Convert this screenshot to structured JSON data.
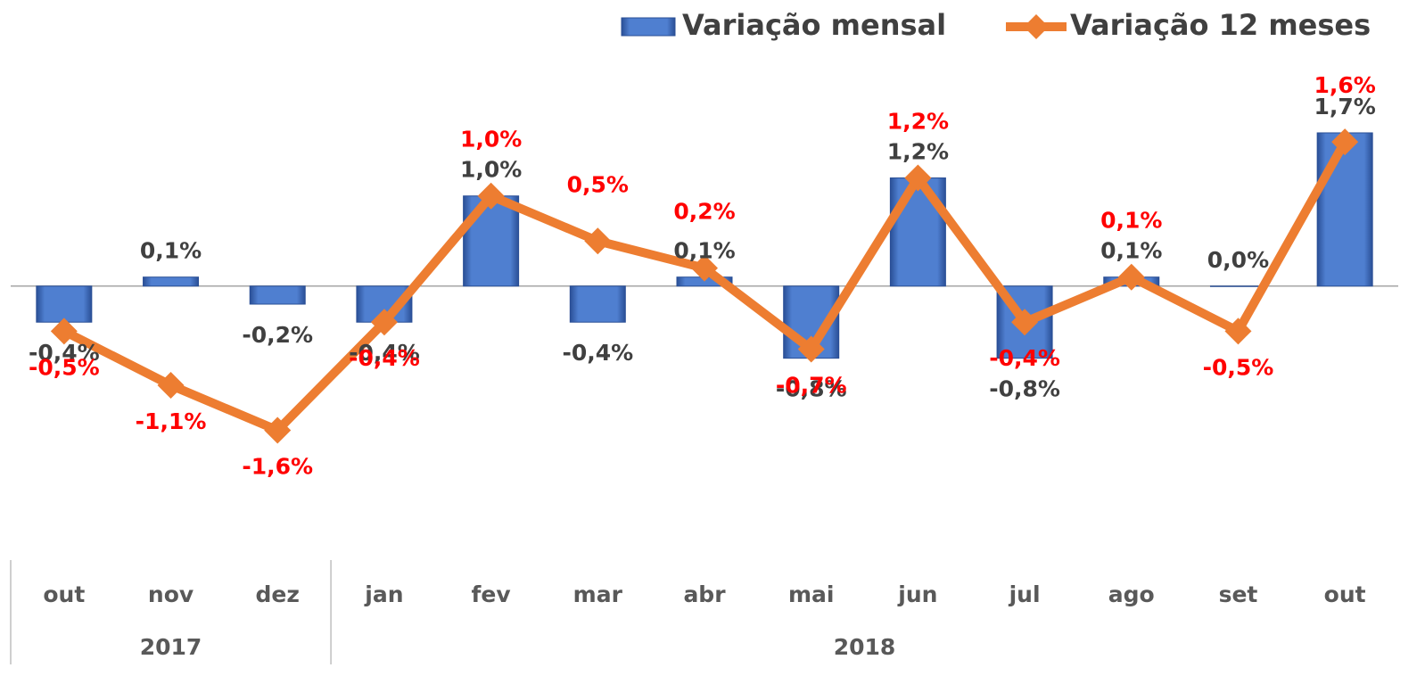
{
  "chart_data": {
    "type": "bar-line",
    "category_groups": [
      {
        "label": "2017",
        "categories": [
          "out",
          "nov",
          "dez"
        ]
      },
      {
        "label": "2018",
        "categories": [
          "jan",
          "fev",
          "mar",
          "abr",
          "mai",
          "jun",
          "jul",
          "ago",
          "set",
          "out"
        ]
      }
    ],
    "series": [
      {
        "name": "Variação mensal",
        "type": "bar",
        "color": "#4472c4",
        "values": [
          -0.4,
          0.1,
          -0.2,
          -0.4,
          1.0,
          -0.4,
          0.1,
          -0.8,
          1.2,
          -0.8,
          0.1,
          0.0,
          1.7
        ],
        "value_labels": [
          "-0,4%",
          "0,1%",
          "-0,2%",
          "-0,4%",
          "1,0%",
          "-0,4%",
          "0,1%",
          "-0,8%",
          "1,2%",
          "-0,8%",
          "0,1%",
          "0,0%",
          "1,7%"
        ]
      },
      {
        "name": "Variação 12 meses",
        "type": "line",
        "color": "#ed7d31",
        "label_color": "#ff0000",
        "values": [
          -0.5,
          -1.1,
          -1.6,
          -0.4,
          1.0,
          0.5,
          0.2,
          -0.7,
          1.2,
          -0.4,
          0.1,
          -0.5,
          1.6
        ],
        "value_labels": [
          "-0,5%",
          "-1,1%",
          "-1,6%",
          "-0,4%",
          "1,0%",
          "0,5%",
          "0,2%",
          "-0,7%",
          "1,2%",
          "-0,4%",
          "0,1%",
          "-0,5%",
          "1,6%"
        ]
      }
    ],
    "ylim": [
      -2.5,
      2.6
    ],
    "legend": "top-right"
  }
}
